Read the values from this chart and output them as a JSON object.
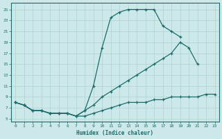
{
  "xlabel": "Humidex (Indice chaleur)",
  "bg_color": "#cde8e8",
  "line_color": "#1a6b6b",
  "grid_color": "#b0d0d0",
  "xlim": [
    -0.5,
    23.5
  ],
  "ylim": [
    4.5,
    26.2
  ],
  "xticks": [
    0,
    1,
    2,
    3,
    4,
    5,
    6,
    7,
    8,
    9,
    10,
    11,
    12,
    13,
    14,
    15,
    16,
    17,
    18,
    19,
    20,
    21,
    22,
    23
  ],
  "yticks": [
    5,
    7,
    9,
    11,
    13,
    15,
    17,
    19,
    21,
    23,
    25
  ],
  "line1_x": [
    0,
    1,
    2,
    3,
    4,
    5,
    6,
    7,
    8,
    9,
    10,
    11,
    12,
    13,
    14,
    15,
    16,
    17,
    18,
    19
  ],
  "line1_y": [
    8,
    7.5,
    6.5,
    6.5,
    6,
    6,
    6,
    5.5,
    6.5,
    11,
    18,
    23.5,
    24.5,
    25,
    25,
    25,
    25,
    22,
    21,
    20
  ],
  "line2_x": [
    0,
    1,
    2,
    3,
    4,
    5,
    6,
    7,
    8,
    9,
    10,
    11,
    12,
    13,
    14,
    15,
    16,
    17,
    18,
    19,
    20,
    21
  ],
  "line2_y": [
    8,
    7.5,
    6.5,
    6.5,
    6,
    6,
    6,
    5.5,
    6.5,
    7.5,
    9,
    10,
    11,
    12,
    13,
    14,
    15,
    16,
    17,
    19,
    18,
    15
  ],
  "line3_x": [
    0,
    1,
    2,
    3,
    4,
    5,
    6,
    7,
    8,
    9,
    10,
    11,
    12,
    13,
    14,
    15,
    16,
    17,
    18,
    19,
    20,
    21,
    22,
    23
  ],
  "line3_y": [
    8,
    7.5,
    6.5,
    6.5,
    6,
    6,
    6,
    5.5,
    5.5,
    6,
    6.5,
    7,
    7.5,
    8,
    8,
    8,
    8.5,
    8.5,
    9,
    9,
    9,
    9,
    9.5,
    9.5
  ]
}
